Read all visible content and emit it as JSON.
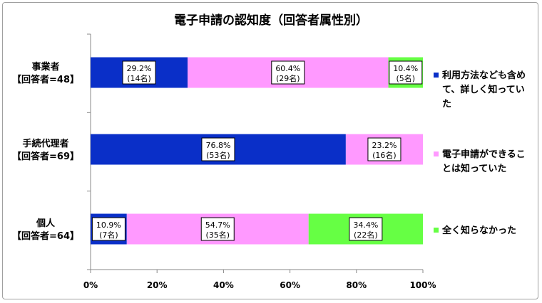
{
  "chart_data": {
    "type": "bar",
    "orientation": "horizontal",
    "stacked": "percent",
    "title": "電子申請の認知度（回答者属性別）",
    "categories": [
      "事業者【回答者=48】",
      "手続代理者【回答者=69】",
      "個人【回答者=64】"
    ],
    "category_lines": [
      [
        "事業者",
        "【回答者=48】"
      ],
      [
        "手続代理者",
        "【回答者=69】"
      ],
      [
        "個人",
        "【回答者=64】"
      ]
    ],
    "series": [
      {
        "name": "利用方法なども含めて、詳しく知っていた",
        "legend_lines": [
          "利用方法なども含め",
          "て、詳しく知ってい",
          "た"
        ],
        "color": "#0a2fc8",
        "values": [
          29.2,
          76.8,
          10.9
        ],
        "counts": [
          "(14名)",
          "(53名)",
          "(7名)"
        ]
      },
      {
        "name": "電子申請ができることは知っていた",
        "legend_lines": [
          "電子申請ができるこ",
          "とは知っていた"
        ],
        "color": "#ff99ff",
        "values": [
          60.4,
          23.2,
          54.7
        ],
        "counts": [
          "(29名)",
          "(16名)",
          "(35名)"
        ]
      },
      {
        "name": "全く知らなかった",
        "legend_lines": [
          "全く知らなかった"
        ],
        "color": "#66ff44",
        "values": [
          10.4,
          0,
          34.4
        ],
        "counts": [
          "(5名)",
          "",
          "(22名)"
        ]
      }
    ],
    "xlim": [
      0,
      100
    ],
    "xticks": [
      "0%",
      "20%",
      "40%",
      "60%",
      "80%",
      "100%"
    ],
    "grid": false,
    "legend_position": "right"
  }
}
